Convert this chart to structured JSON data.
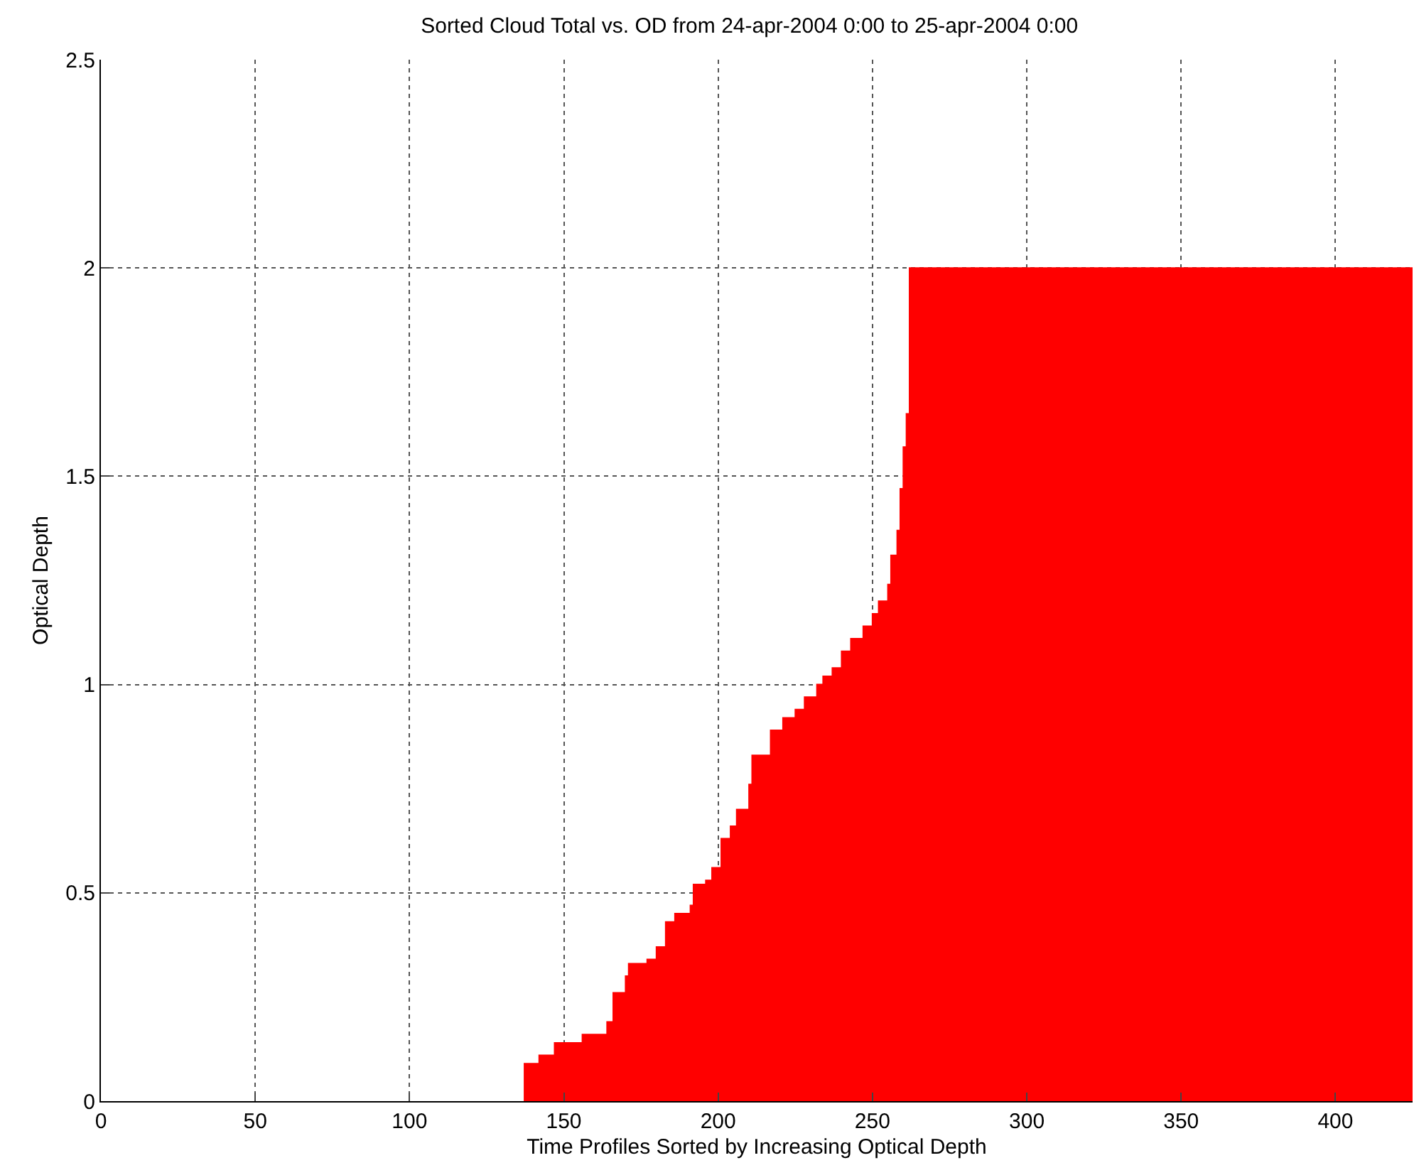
{
  "chart_data": {
    "type": "area",
    "title": "Sorted Cloud Total vs. OD from 24-apr-2004 0:00 to 25-apr-2004 0:00",
    "xlabel": "Time Profiles Sorted by Increasing Optical Depth",
    "ylabel": "Optical Depth",
    "x": [
      137,
      142,
      142,
      147,
      147,
      156,
      156,
      164,
      164,
      166,
      166,
      170,
      170,
      171,
      171,
      177,
      177,
      180,
      180,
      183,
      183,
      186,
      186,
      191,
      191,
      192,
      192,
      196,
      196,
      198,
      198,
      201,
      201,
      204,
      204,
      206,
      206,
      210,
      210,
      211,
      211,
      217,
      217,
      221,
      221,
      225,
      225,
      228,
      228,
      232,
      232,
      234,
      234,
      237,
      237,
      240,
      240,
      243,
      243,
      247,
      247,
      250,
      250,
      252,
      252,
      255,
      255,
      256,
      256,
      258,
      258,
      259,
      259,
      260,
      260,
      261,
      261,
      262,
      262,
      425
    ],
    "series": [
      {
        "color": "#ff0000",
        "values": [
          0.09,
          0.09,
          0.11,
          0.11,
          0.14,
          0.14,
          0.16,
          0.16,
          0.19,
          0.19,
          0.26,
          0.26,
          0.3,
          0.3,
          0.33,
          0.33,
          0.34,
          0.34,
          0.37,
          0.37,
          0.43,
          0.43,
          0.45,
          0.45,
          0.47,
          0.47,
          0.52,
          0.52,
          0.53,
          0.53,
          0.56,
          0.56,
          0.63,
          0.63,
          0.66,
          0.66,
          0.7,
          0.7,
          0.76,
          0.76,
          0.83,
          0.83,
          0.89,
          0.89,
          0.92,
          0.92,
          0.94,
          0.94,
          0.97,
          0.97,
          1.0,
          1.0,
          1.02,
          1.02,
          1.04,
          1.04,
          1.08,
          1.08,
          1.11,
          1.11,
          1.14,
          1.14,
          1.17,
          1.17,
          1.2,
          1.2,
          1.24,
          1.24,
          1.31,
          1.31,
          1.37,
          1.37,
          1.47,
          1.47,
          1.57,
          1.57,
          1.65,
          1.65,
          2.0,
          2.0
        ]
      }
    ],
    "xlim": [
      0,
      425
    ],
    "xticks": [
      0,
      50,
      100,
      150,
      200,
      250,
      300,
      350,
      400
    ],
    "ylim": [
      0,
      2.5
    ],
    "yticks": [
      0,
      0.5,
      1,
      1.5,
      2,
      2.5
    ],
    "grid": true
  }
}
